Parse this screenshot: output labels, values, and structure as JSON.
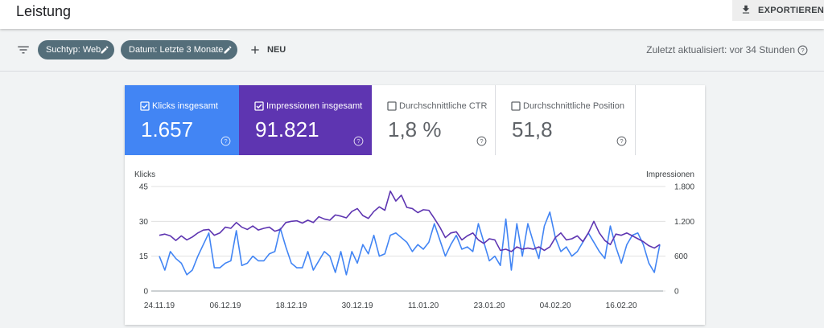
{
  "header": {
    "title": "Leistung",
    "export": "EXPORTIEREN"
  },
  "filters": {
    "chips": [
      "Suchtyp: Web",
      "Datum: Letzte 3 Monate"
    ],
    "new": "NEU",
    "updated": "Zuletzt aktualisiert: vor 34 Stunden"
  },
  "metrics": [
    {
      "label": "Klicks insgesamt",
      "value": "1.657"
    },
    {
      "label": "Impressionen insgesamt",
      "value": "91.821"
    },
    {
      "label": "Durchschnittliche CTR",
      "value": "1,8 %"
    },
    {
      "label": "Durchschnittliche Position",
      "value": "51,8"
    }
  ],
  "chart_data": {
    "type": "line",
    "ylabel": "Klicks",
    "y2label": "Impressionen",
    "categories": [
      "24.11.19",
      null,
      null,
      null,
      null,
      null,
      null,
      null,
      null,
      null,
      null,
      null,
      "06.12.19",
      null,
      null,
      null,
      null,
      null,
      null,
      null,
      null,
      null,
      null,
      null,
      "18.12.19",
      null,
      null,
      null,
      null,
      null,
      null,
      null,
      null,
      null,
      null,
      null,
      "30.12.19",
      null,
      null,
      null,
      null,
      null,
      null,
      null,
      null,
      null,
      null,
      null,
      "11.01.20",
      null,
      null,
      null,
      null,
      null,
      null,
      null,
      null,
      null,
      null,
      null,
      "23.01.20",
      null,
      null,
      null,
      null,
      null,
      null,
      null,
      null,
      null,
      null,
      null,
      "04.02.20",
      null,
      null,
      null,
      null,
      null,
      null,
      null,
      null,
      null,
      null,
      null,
      "16.02.20",
      null,
      null,
      null,
      null,
      null,
      null,
      null
    ],
    "series": [
      {
        "color": "#4285f4",
        "values": [
          15,
          9,
          17,
          14,
          12,
          7,
          9,
          15,
          20,
          25,
          10,
          10,
          12,
          13,
          26,
          11,
          12,
          15,
          13,
          13,
          16,
          17,
          27,
          19,
          12,
          10,
          10,
          17,
          9,
          13,
          17,
          15,
          8,
          17,
          7,
          17,
          12,
          20,
          16,
          24,
          15,
          16,
          24,
          25,
          23,
          21,
          17,
          20,
          18,
          21,
          29,
          22,
          15,
          20,
          24,
          18,
          19,
          17,
          29,
          21,
          13,
          15,
          11,
          31,
          9,
          29,
          15,
          29,
          21,
          14,
          28,
          34,
          23,
          17,
          19,
          15,
          17,
          21,
          25,
          21,
          17,
          14,
          28,
          19,
          12,
          20,
          24,
          25,
          20,
          12,
          8,
          20
        ]
      },
      {
        "color": "#5e35b1",
        "axis": "y2",
        "values": [
          960,
          980,
          950,
          870,
          950,
          880,
          930,
          1000,
          1050,
          1060,
          960,
          1000,
          1100,
          1080,
          1180,
          1100,
          1060,
          1120,
          1050,
          1080,
          1100,
          1030,
          1060,
          1180,
          1200,
          1210,
          1170,
          1220,
          1180,
          1280,
          1240,
          1220,
          1310,
          1290,
          1260,
          1370,
          1420,
          1300,
          1250,
          1370,
          1450,
          1390,
          1720,
          1550,
          1650,
          1440,
          1420,
          1350,
          1400,
          1390,
          1250,
          1100,
          920,
          1000,
          1020,
          880,
          950,
          1000,
          880,
          820,
          900,
          880,
          700,
          720,
          680,
          760,
          720,
          740,
          720,
          760,
          700,
          760,
          920,
          1000,
          880,
          900,
          950,
          850,
          1000,
          1200,
          1000,
          870,
          800,
          980,
          960,
          1000,
          950,
          900,
          850,
          780,
          740,
          800
        ]
      }
    ],
    "ylim": [
      0,
      45
    ],
    "yticks": [
      0,
      15,
      30,
      45
    ],
    "y2lim": [
      0,
      1800
    ],
    "y2ticks": [
      0,
      600,
      {
        "value": 1200,
        "label": "1.200"
      },
      {
        "value": 1800,
        "label": "1.800"
      }
    ],
    "grid": true
  }
}
